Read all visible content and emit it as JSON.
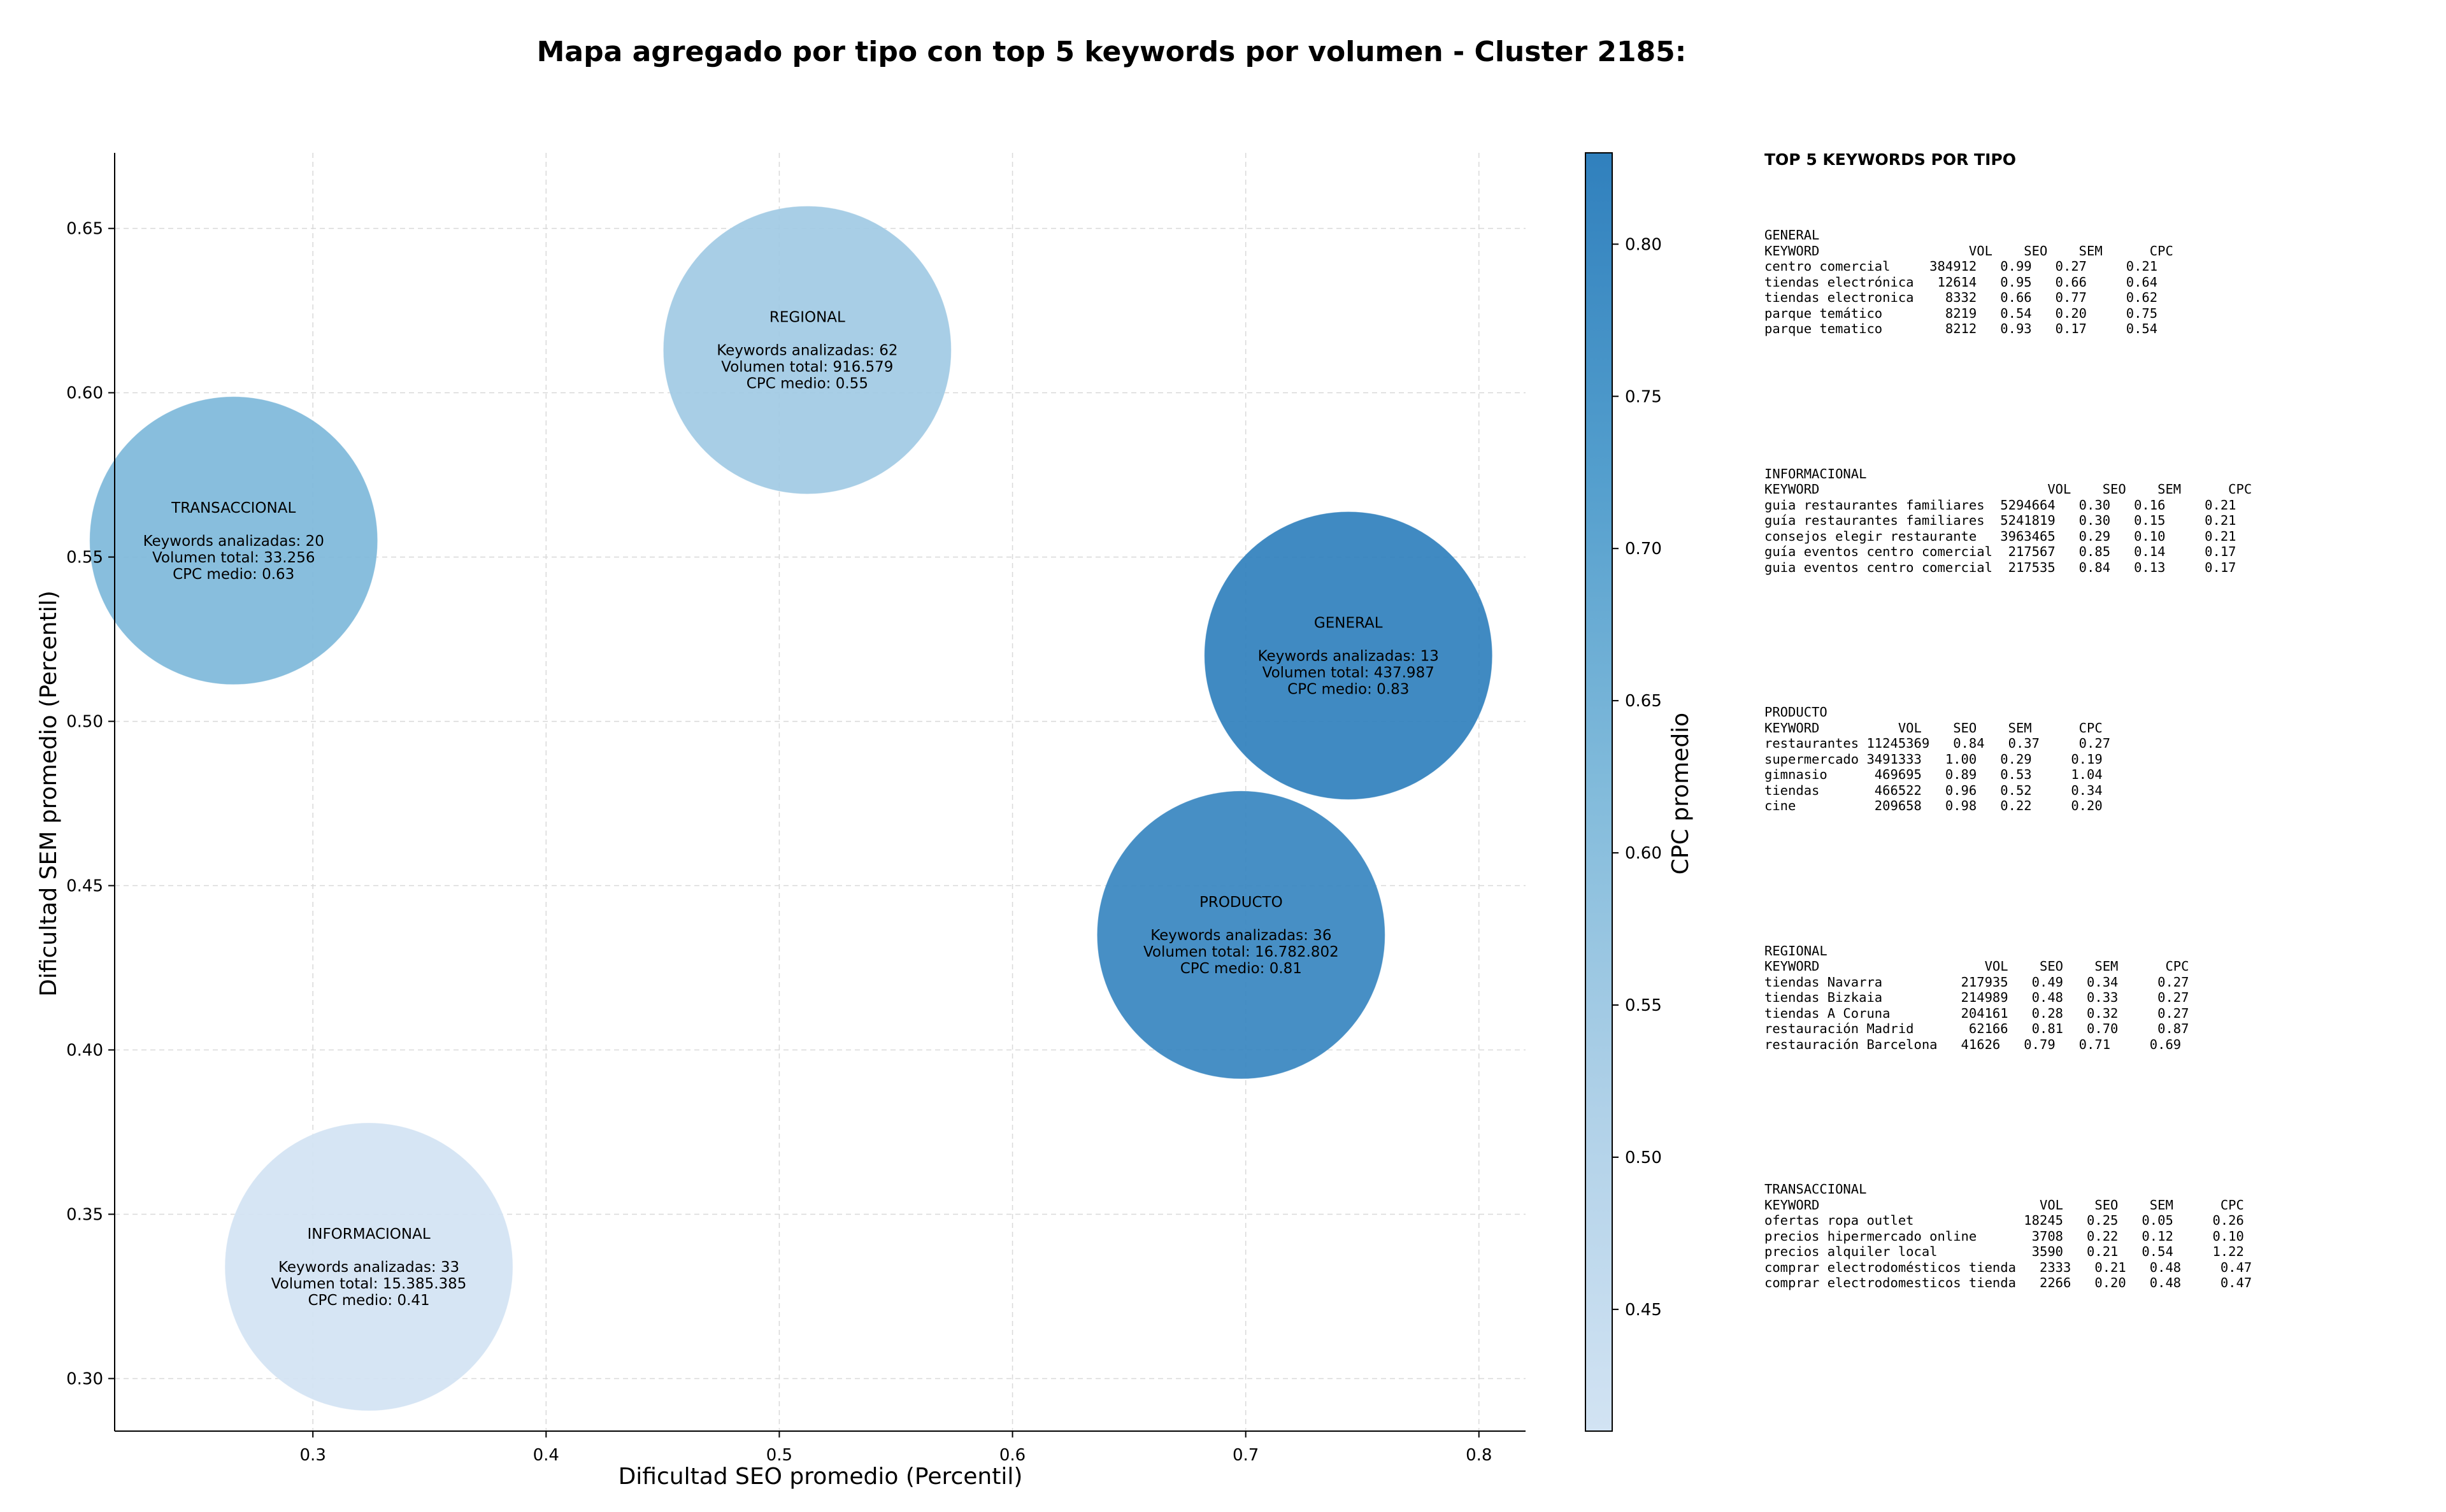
{
  "chart_data": {
    "type": "scatter",
    "title": "Mapa agregado por tipo con top 5 keywords por volumen - Cluster 2185:",
    "xlabel": "Dificultad SEO promedio (Percentil)",
    "ylabel": "Dificultad SEM promedio (Percentil)",
    "xlim": [
      0.215,
      0.82
    ],
    "ylim": [
      0.284,
      0.673
    ],
    "xticks": [
      "0.3",
      "0.4",
      "0.5",
      "0.6",
      "0.7",
      "0.8"
    ],
    "yticks": [
      "0.30",
      "0.35",
      "0.40",
      "0.45",
      "0.50",
      "0.55",
      "0.60",
      "0.65"
    ],
    "grid": true,
    "colorbar": {
      "label": "CPC promedio",
      "range": [
        0.41,
        0.83
      ],
      "ticks": [
        "0.45",
        "0.50",
        "0.55",
        "0.60",
        "0.65",
        "0.70",
        "0.75",
        "0.80"
      ],
      "colormap": "Blues"
    },
    "points": [
      {
        "name": "GENERAL",
        "x": 0.744,
        "y": 0.52,
        "keywords": 13,
        "volume": 437987,
        "cpc": 0.83,
        "lines": [
          "GENERAL",
          "",
          "Keywords analizadas: 13",
          "Volumen total: 437.987",
          "CPC medio: 0.83"
        ]
      },
      {
        "name": "INFORMACIONAL",
        "x": 0.324,
        "y": 0.334,
        "keywords": 33,
        "volume": 15385385,
        "cpc": 0.41,
        "lines": [
          "INFORMACIONAL",
          "",
          "Keywords analizadas: 33",
          "Volumen total: 15.385.385",
          "CPC medio: 0.41"
        ]
      },
      {
        "name": "PRODUCTO",
        "x": 0.698,
        "y": 0.435,
        "keywords": 36,
        "volume": 16782802,
        "cpc": 0.81,
        "lines": [
          "PRODUCTO",
          "",
          "Keywords analizadas: 36",
          "Volumen total: 16.782.802",
          "CPC medio: 0.81"
        ]
      },
      {
        "name": "REGIONAL",
        "x": 0.512,
        "y": 0.613,
        "keywords": 62,
        "volume": 916579,
        "cpc": 0.55,
        "lines": [
          "REGIONAL",
          "",
          "Keywords analizadas: 62",
          "Volumen total: 916.579",
          "CPC medio: 0.55"
        ]
      },
      {
        "name": "TRANSACCIONAL",
        "x": 0.266,
        "y": 0.555,
        "keywords": 20,
        "volume": 33256,
        "cpc": 0.63,
        "lines": [
          "TRANSACCIONAL",
          "",
          "Keywords analizadas: 20",
          "Volumen total: 33.256",
          "CPC medio: 0.63"
        ]
      }
    ]
  },
  "panel": {
    "title": "TOP 5 KEYWORDS POR TIPO",
    "general": "GENERAL\nKEYWORD                   VOL    SEO    SEM      CPC\ncentro comercial     384912   0.99   0.27     0.21\ntiendas electrónica   12614   0.95   0.66     0.64\ntiendas electronica    8332   0.66   0.77     0.62\nparque temático        8219   0.54   0.20     0.75\nparque tematico        8212   0.93   0.17     0.54",
    "informacional": "INFORMACIONAL\nKEYWORD                             VOL    SEO    SEM      CPC\nguia restaurantes familiares  5294664   0.30   0.16     0.21\nguía restaurantes familiares  5241819   0.30   0.15     0.21\nconsejos elegir restaurante   3963465   0.29   0.10     0.21\nguía eventos centro comercial  217567   0.85   0.14     0.17\nguia eventos centro comercial  217535   0.84   0.13     0.17",
    "producto": "PRODUCTO\nKEYWORD          VOL    SEO    SEM      CPC\nrestaurantes 11245369   0.84   0.37     0.27\nsupermercado 3491333   1.00   0.29     0.19\ngimnasio      469695   0.89   0.53     1.04\ntiendas       466522   0.96   0.52     0.34\ncine          209658   0.98   0.22     0.20",
    "regional": "REGIONAL\nKEYWORD                     VOL    SEO    SEM      CPC\ntiendas Navarra          217935   0.49   0.34     0.27\ntiendas Bizkaia          214989   0.48   0.33     0.27\ntiendas A Coruna         204161   0.28   0.32     0.27\nrestauración Madrid       62166   0.81   0.70     0.87\nrestauración Barcelona   41626   0.79   0.71     0.69",
    "transaccional": "TRANSACCIONAL\nKEYWORD                            VOL    SEO    SEM      CPC\nofertas ropa outlet              18245   0.25   0.05     0.26\nprecios hipermercado online       3708   0.22   0.12     0.10\nprecios alquiler local            3590   0.21   0.54     1.22\ncomprar electrodomésticos tienda   2333   0.21   0.48     0.47\ncomprar electrodomesticos tienda   2266   0.20   0.48     0.47"
  }
}
